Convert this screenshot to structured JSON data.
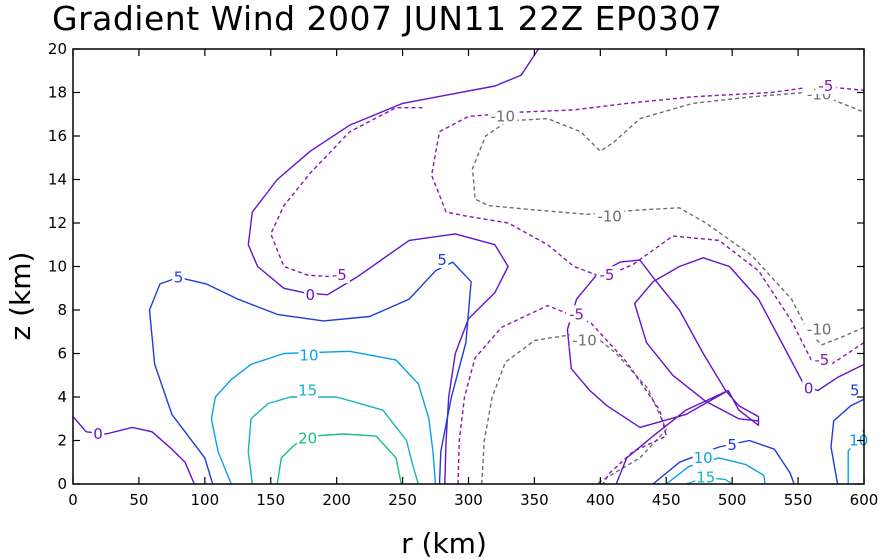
{
  "chart_data": {
    "type": "contour",
    "title": "Gradient Wind 2007 JUN11 22Z  EP0307",
    "xlabel": "r (km)",
    "ylabel": "z (km)",
    "xlim": [
      0,
      600
    ],
    "ylim": [
      0,
      20
    ],
    "x_ticks": [
      "0",
      "50",
      "100",
      "150",
      "200",
      "250",
      "300",
      "350",
      "400",
      "450",
      "500",
      "550",
      "600"
    ],
    "y_ticks": [
      "0",
      "2",
      "4",
      "6",
      "8",
      "10",
      "12",
      "14",
      "16",
      "18",
      "20"
    ],
    "grid": false,
    "levels": [
      {
        "value": -10,
        "color": "#6e6e6e",
        "dashed": true,
        "segments": [
          [
            [
              310,
              0
            ],
            [
              312,
              2
            ],
            [
              318,
              4
            ],
            [
              328,
              5.6
            ],
            [
              350,
              6.6
            ],
            [
              392,
              7
            ],
            [
              412,
              6
            ],
            [
              436,
              4.4
            ],
            [
              450,
              2.5
            ],
            [
              430,
              1.2
            ],
            [
              405,
              0.3
            ],
            [
              397,
              0
            ]
          ],
          [
            [
              600,
              7.2
            ],
            [
              585,
              6.8
            ],
            [
              568,
              6.4
            ],
            [
              558,
              7
            ],
            [
              545,
              8.5
            ],
            [
              515,
              10.5
            ],
            [
              480,
              12
            ],
            [
              460,
              12.7
            ],
            [
              430,
              12.6
            ],
            [
              390,
              12.4
            ],
            [
              350,
              12.6
            ],
            [
              315,
              12.8
            ],
            [
              305,
              13.1
            ],
            [
              303,
              14.5
            ],
            [
              313,
              16
            ],
            [
              330,
              16.7
            ],
            [
              360,
              16.8
            ],
            [
              385,
              16.2
            ],
            [
              400,
              15.3
            ],
            [
              410,
              15.7
            ],
            [
              430,
              16.8
            ],
            [
              470,
              17.5
            ],
            [
              515,
              17.8
            ],
            [
              555,
              18
            ],
            [
              575,
              17.7
            ],
            [
              600,
              17.1
            ]
          ]
        ],
        "labels": [
          {
            "text": "-10",
            "x": 388,
            "y": 6.6
          },
          {
            "text": "-10",
            "x": 326,
            "y": 16.9
          },
          {
            "text": "-10",
            "x": 407,
            "y": 12.3
          },
          {
            "text": "-10",
            "x": 566,
            "y": 7.1
          },
          {
            "text": "-10",
            "x": 566,
            "y": 17.9
          }
        ]
      },
      {
        "value": -5,
        "color": "#8c14b4",
        "dashed": true,
        "segments": [
          [
            [
              292,
              0
            ],
            [
              293,
              2
            ],
            [
              297,
              4
            ],
            [
              305,
              5.8
            ],
            [
              325,
              7.2
            ],
            [
              360,
              8.2
            ],
            [
              393,
              7.4
            ],
            [
              420,
              5.6
            ],
            [
              445,
              3.4
            ],
            [
              450,
              2.2
            ],
            [
              425,
              1.5
            ],
            [
              407,
              0.5
            ],
            [
              402,
              0
            ]
          ],
          [
            [
              600,
              6.5
            ],
            [
              585,
              5.9
            ],
            [
              570,
              5.3
            ],
            [
              560,
              5.7
            ],
            [
              545,
              7.5
            ],
            [
              520,
              9.8
            ],
            [
              490,
              11.2
            ],
            [
              455,
              11.4
            ],
            [
              425,
              10.1
            ],
            [
              402,
              9.5
            ],
            [
              380,
              10
            ],
            [
              360,
              11
            ],
            [
              330,
              12
            ],
            [
              300,
              12.3
            ],
            [
              283,
              12.5
            ],
            [
              272,
              14.2
            ],
            [
              278,
              16.2
            ],
            [
              300,
              16.9
            ],
            [
              340,
              17.1
            ],
            [
              380,
              17.2
            ],
            [
              420,
              17.5
            ],
            [
              470,
              17.8
            ],
            [
              530,
              18
            ],
            [
              565,
              18.3
            ],
            [
              600,
              18.1
            ]
          ],
          [
            [
              205,
              9.5
            ],
            [
              178,
              9.6
            ],
            [
              160,
              10
            ],
            [
              150,
              11.5
            ],
            [
              160,
              12.8
            ],
            [
              180,
              14.3
            ],
            [
              210,
              16.2
            ],
            [
              245,
              17.3
            ],
            [
              265,
              17.3
            ]
          ]
        ],
        "labels": [
          {
            "text": "-5",
            "x": 202,
            "y": 9.6
          },
          {
            "text": "-5",
            "x": 405,
            "y": 9.6
          },
          {
            "text": "-5",
            "x": 382,
            "y": 7.8
          },
          {
            "text": "-5",
            "x": 568,
            "y": 5.7
          },
          {
            "text": "-5",
            "x": 571,
            "y": 18.3
          }
        ]
      },
      {
        "value": 0,
        "color": "#6414cc",
        "dashed": false,
        "segments": [
          [
            [
              0,
              3.1
            ],
            [
              10,
              2.4
            ],
            [
              25,
              2.3
            ],
            [
              45,
              2.6
            ],
            [
              60,
              2.4
            ],
            [
              75,
              1.6
            ],
            [
              85,
              1
            ],
            [
              92,
              0
            ]
          ],
          [
            [
              282,
              0
            ],
            [
              283,
              2
            ],
            [
              285,
              4
            ],
            [
              290,
              6
            ],
            [
              300,
              7.6
            ],
            [
              320,
              8.8
            ],
            [
              330,
              10
            ],
            [
              320,
              11
            ],
            [
              290,
              11.5
            ],
            [
              255,
              11.2
            ],
            [
              215,
              9.5
            ],
            [
              193,
              8.7
            ],
            [
              175,
              8.8
            ],
            [
              160,
              9
            ],
            [
              140,
              10
            ],
            [
              133,
              11
            ],
            [
              136,
              12.5
            ],
            [
              155,
              14
            ],
            [
              180,
              15.3
            ],
            [
              210,
              16.5
            ],
            [
              250,
              17.5
            ],
            [
              285,
              17.9
            ],
            [
              320,
              18.3
            ],
            [
              340,
              18.8
            ],
            [
              353,
              20
            ]
          ],
          [
            [
              412,
              0
            ],
            [
              420,
              1.2
            ],
            [
              440,
              2.2
            ],
            [
              465,
              3.4
            ],
            [
              497,
              4.3
            ],
            [
              505,
              3.4
            ],
            [
              520,
              2.7
            ],
            [
              520,
              3.1
            ],
            [
              505,
              3.6
            ],
            [
              495,
              4.3
            ],
            [
              478,
              6
            ],
            [
              460,
              8
            ],
            [
              440,
              9.5
            ],
            [
              430,
              10.3
            ],
            [
              415,
              10.2
            ],
            [
              397,
              9.6
            ],
            [
              382,
              8.5
            ],
            [
              375,
              7.1
            ],
            [
              378,
              5.3
            ],
            [
              392,
              4.3
            ],
            [
              405,
              3.6
            ],
            [
              430,
              2.6
            ],
            [
              465,
              3.2
            ],
            [
              497,
              4.3
            ]
          ],
          [
            [
              600,
              5.5
            ],
            [
              580,
              4.9
            ],
            [
              565,
              4.3
            ],
            [
              555,
              4.5
            ],
            [
              542,
              6
            ],
            [
              520,
              8.5
            ],
            [
              498,
              10
            ],
            [
              478,
              10.4
            ],
            [
              460,
              10
            ],
            [
              440,
              9.3
            ],
            [
              426,
              8.3
            ],
            [
              435,
              6.5
            ],
            [
              455,
              5
            ],
            [
              480,
              3.8
            ],
            [
              505,
              3
            ],
            [
              520,
              2.9
            ]
          ]
        ],
        "labels": [
          {
            "text": "0",
            "x": 19,
            "y": 2.3
          },
          {
            "text": "0",
            "x": 180,
            "y": 8.7
          },
          {
            "text": "0",
            "x": 558,
            "y": 4.4
          }
        ]
      },
      {
        "value": 5,
        "color": "#1e3cdc",
        "dashed": false,
        "segments": [
          [
            [
              106,
              0
            ],
            [
              100,
              1.2
            ],
            [
              75,
              3.2
            ],
            [
              62,
              5.5
            ],
            [
              58,
              8
            ],
            [
              66,
              9.2
            ],
            [
              80,
              9.5
            ],
            [
              101,
              9.2
            ],
            [
              125,
              8.5
            ],
            [
              155,
              7.8
            ],
            [
              190,
              7.5
            ],
            [
              225,
              7.7
            ],
            [
              255,
              8.5
            ],
            [
              275,
              9.8
            ],
            [
              288,
              10.2
            ],
            [
              302,
              9.3
            ],
            [
              298,
              6.5
            ],
            [
              287,
              4
            ],
            [
              279,
              1.5
            ],
            [
              278,
              0
            ]
          ],
          [
            [
              440,
              0
            ],
            [
              460,
              1
            ],
            [
              490,
              1.7
            ],
            [
              513,
              2
            ],
            [
              532,
              1.6
            ],
            [
              544,
              0.5
            ],
            [
              547,
              0
            ]
          ],
          [
            [
              580,
              0
            ],
            [
              575,
              1.7
            ],
            [
              577,
              2.9
            ],
            [
              590,
              3.6
            ],
            [
              600,
              3.9
            ]
          ]
        ],
        "labels": [
          {
            "text": "5",
            "x": 80,
            "y": 9.5
          },
          {
            "text": "5",
            "x": 280,
            "y": 10.3
          },
          {
            "text": "5",
            "x": 500,
            "y": 1.8
          },
          {
            "text": "5",
            "x": 593,
            "y": 4.3
          }
        ]
      },
      {
        "value": 10,
        "color": "#0aa0e6",
        "dashed": false,
        "segments": [
          [
            [
              120,
              0
            ],
            [
              110,
              1.5
            ],
            [
              105,
              3
            ],
            [
              108,
              4
            ],
            [
              120,
              4.8
            ],
            [
              135,
              5.5
            ],
            [
              160,
              6
            ],
            [
              210,
              6.1
            ],
            [
              245,
              5.7
            ],
            [
              262,
              4.6
            ],
            [
              270,
              3
            ],
            [
              273,
              1.5
            ],
            [
              275,
              0
            ]
          ],
          [
            [
              450,
              0
            ],
            [
              467,
              0.8
            ],
            [
              490,
              1.2
            ],
            [
              510,
              0.9
            ],
            [
              524,
              0.4
            ],
            [
              525,
              0
            ]
          ],
          [
            [
              588,
              0
            ],
            [
              588,
              1.5
            ],
            [
              600,
              2.5
            ]
          ]
        ],
        "labels": [
          {
            "text": "10",
            "x": 179,
            "y": 5.9
          },
          {
            "text": "10",
            "x": 478,
            "y": 1.2
          },
          {
            "text": "10",
            "x": 596,
            "y": 2
          }
        ]
      },
      {
        "value": 15,
        "color": "#14b4be",
        "dashed": false,
        "segments": [
          [
            [
              136,
              0
            ],
            [
              133,
              1.5
            ],
            [
              135,
              3
            ],
            [
              148,
              3.7
            ],
            [
              165,
              4
            ],
            [
              200,
              4
            ],
            [
              235,
              3.4
            ],
            [
              253,
              2
            ],
            [
              258,
              0.8
            ],
            [
              262,
              0
            ]
          ],
          [
            [
              465,
              0
            ],
            [
              480,
              0.3
            ],
            [
              495,
              0.2
            ],
            [
              500,
              0
            ]
          ]
        ],
        "labels": [
          {
            "text": "15",
            "x": 178,
            "y": 4.3
          },
          {
            "text": "15",
            "x": 480,
            "y": 0.3
          }
        ]
      },
      {
        "value": 20,
        "color": "#14be8c",
        "dashed": false,
        "segments": [
          [
            [
              155,
              0
            ],
            [
              158,
              1.2
            ],
            [
              168,
              1.8
            ],
            [
              182,
              2.2
            ],
            [
              205,
              2.3
            ],
            [
              230,
              2.2
            ],
            [
              245,
              1.2
            ],
            [
              249,
              0
            ]
          ]
        ],
        "labels": [
          {
            "text": "20",
            "x": 178,
            "y": 2.1
          }
        ]
      }
    ]
  }
}
